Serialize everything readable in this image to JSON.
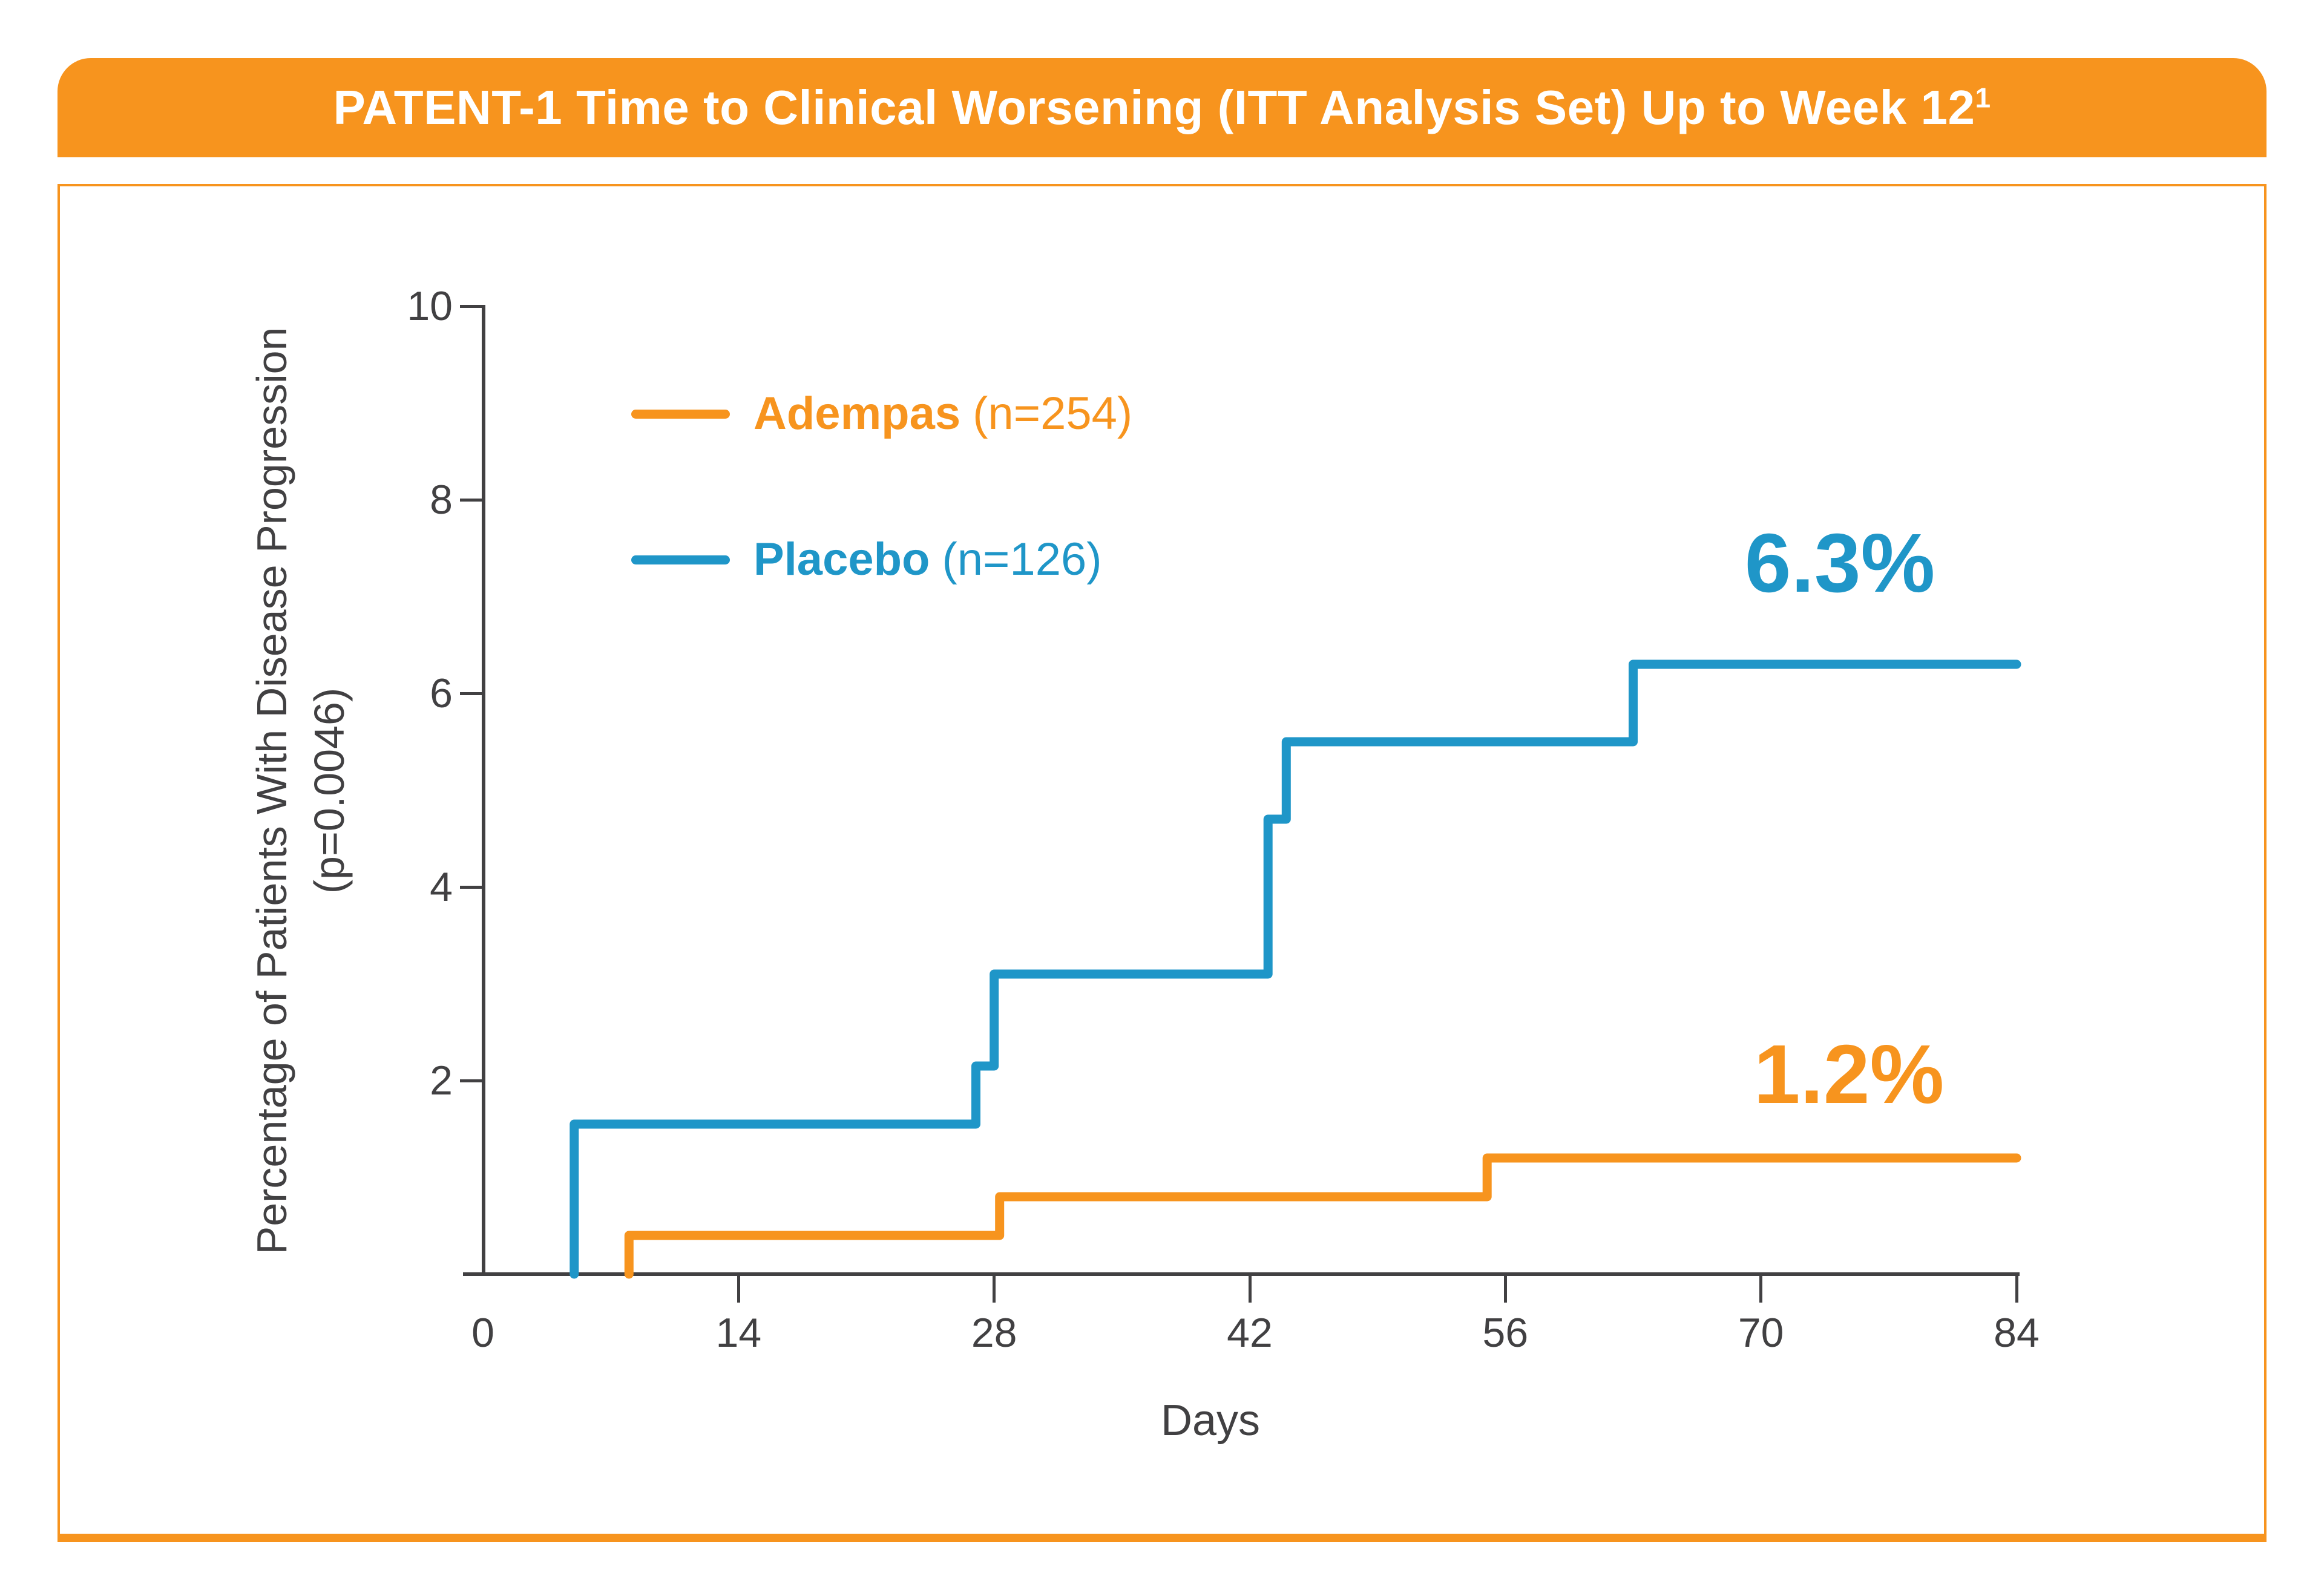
{
  "title_bar": {
    "text": "PATENT-1 Time to Clinical Worsening (ITT Analysis Set) Up to Week 12",
    "superscript": "1"
  },
  "colors": {
    "orange": "#F7941E",
    "blue": "#1F96C8",
    "axis": "#414042",
    "title_text": "#FFFFFF",
    "panel_border": "#F7941E",
    "background": "#FFFFFF"
  },
  "legend": [
    {
      "name": "Adempas",
      "count": "(n=254)",
      "color": "#F7941E"
    },
    {
      "name": "Placebo",
      "count": "(n=126)",
      "color": "#1F96C8"
    }
  ],
  "chart_data": {
    "type": "line",
    "step": true,
    "title": "PATENT-1 Time to Clinical Worsening (ITT Analysis Set) Up to Week 12",
    "xlabel": "Days",
    "ylabel": "Percentage of Patients With Disease Progression",
    "ylabel_line2": "(p=0.0046)",
    "xlim": [
      0,
      84
    ],
    "ylim": [
      0,
      10
    ],
    "x_ticks": [
      0,
      14,
      28,
      42,
      56,
      70,
      84
    ],
    "y_ticks": [
      2,
      4,
      6,
      8,
      10
    ],
    "grid": false,
    "legend_position": "upper-left-inside",
    "series": [
      {
        "name": "Adempas (n=254)",
        "color": "#F7941E",
        "final_value_pct": 1.2,
        "points": [
          [
            8,
            0
          ],
          [
            8,
            0.4
          ],
          [
            28.3,
            0.4
          ],
          [
            28.3,
            0.8
          ],
          [
            55,
            0.8
          ],
          [
            55,
            1.2
          ],
          [
            84,
            1.2
          ]
        ]
      },
      {
        "name": "Placebo (n=126)",
        "color": "#1F96C8",
        "final_value_pct": 6.3,
        "points": [
          [
            5,
            0
          ],
          [
            5,
            1.55
          ],
          [
            27,
            1.55
          ],
          [
            27,
            2.15
          ],
          [
            28,
            2.15
          ],
          [
            28,
            3.1
          ],
          [
            43,
            3.1
          ],
          [
            43,
            4.7
          ],
          [
            44,
            4.7
          ],
          [
            44,
            5.5
          ],
          [
            63,
            5.5
          ],
          [
            63,
            6.3
          ],
          [
            84,
            6.3
          ]
        ]
      }
    ],
    "annotations": [
      {
        "text": "6.3%",
        "series": "Placebo",
        "color": "#1F96C8"
      },
      {
        "text": "1.2%",
        "series": "Adempas",
        "color": "#F7941E"
      }
    ]
  }
}
